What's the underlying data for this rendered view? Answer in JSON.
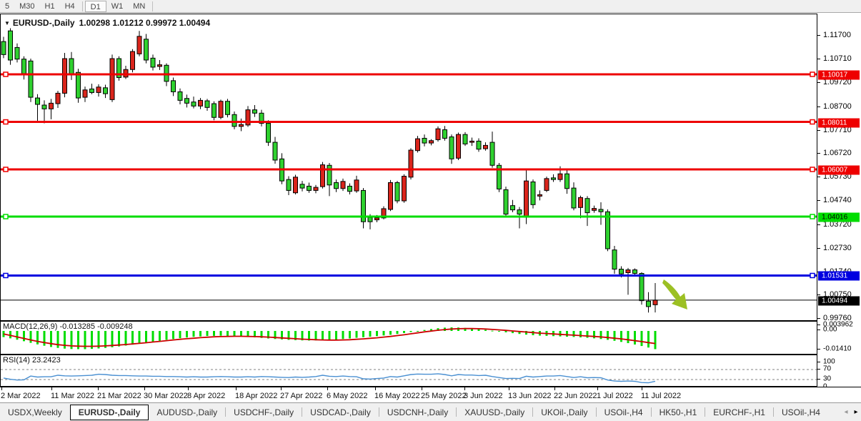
{
  "toolbar": {
    "timeframes": [
      "5",
      "M30",
      "H1",
      "H4",
      "D1",
      "W1",
      "MN"
    ],
    "active": "D1",
    "separators_after": [
      "H4",
      "MN"
    ]
  },
  "chart_header": {
    "symbol_label": "EURUSD-,Daily",
    "ohlc": "1.00298 1.01212 0.99972 1.00494",
    "dropdown_icon": "▼"
  },
  "chart_data": {
    "type": "candlestick",
    "symbol": "EURUSD",
    "timeframe": "Daily",
    "ohlc_current": {
      "open": 1.00298,
      "high": 1.01212,
      "low": 0.99972,
      "close": 1.00494
    },
    "color_scheme": {
      "up_candle": "#da251c",
      "down_candle": "#2fd12f",
      "note": "red = bullish, green = bearish"
    },
    "price_axis_ticks": [
      "1.11700",
      "1.10710",
      "1.09720",
      "1.08700",
      "1.07710",
      "1.06720",
      "1.05730",
      "1.04740",
      "1.03720",
      "1.02730",
      "1.01740",
      "1.00750",
      "0.99760"
    ],
    "hlines": [
      {
        "price": 1.10017,
        "label": "1.10017",
        "color": "#ee0000",
        "text": "#fff",
        "thick": true,
        "handles": true
      },
      {
        "price": 1.08011,
        "label": "1.08011",
        "color": "#ee0000",
        "text": "#fff",
        "thick": true,
        "handles": true
      },
      {
        "price": 1.06007,
        "label": "1.06007",
        "color": "#ee0000",
        "text": "#fff",
        "thick": true,
        "handles": true
      },
      {
        "price": 1.04016,
        "label": "1.04016",
        "color": "#00dd00",
        "text": "#000",
        "thick": true,
        "handles": true
      },
      {
        "price": 1.01531,
        "label": "1.01531",
        "color": "#0000e0",
        "text": "#fff",
        "thick": true,
        "handles": true
      },
      {
        "price": 1.00494,
        "label": "1.00494",
        "color": "#000000",
        "text": "#fff",
        "thick": false,
        "handles": false
      }
    ],
    "candles": [
      [
        1.114,
        1.116,
        1.107,
        1.1085
      ],
      [
        1.1185,
        1.1196,
        1.1042,
        1.1062
      ],
      [
        1.1115,
        1.1132,
        1.1052,
        1.1066
      ],
      [
        1.1066,
        1.1078,
        1.098,
        1.1005
      ],
      [
        1.1058,
        1.1068,
        1.0885,
        1.0905
      ],
      [
        1.0902,
        1.0918,
        1.08,
        1.0875
      ],
      [
        1.0872,
        1.0892,
        1.0795,
        1.0856
      ],
      [
        1.0856,
        1.0898,
        1.0812,
        1.088
      ],
      [
        1.0878,
        1.0932,
        1.086,
        1.0922
      ],
      [
        1.0922,
        1.1092,
        1.0905,
        1.1068
      ],
      [
        1.1068,
        1.1096,
        1.0978,
        1.1002
      ],
      [
        1.101,
        1.1025,
        1.0882,
        1.0902
      ],
      [
        1.0905,
        1.095,
        1.0885,
        1.0936
      ],
      [
        1.094,
        1.0962,
        1.0918,
        1.0925
      ],
      [
        1.0925,
        1.096,
        1.0908,
        1.0948
      ],
      [
        1.0945,
        1.0958,
        1.0902,
        1.092
      ],
      [
        1.0895,
        1.1085,
        1.0885,
        1.1068
      ],
      [
        1.1068,
        1.1078,
        1.0975,
        1.0988
      ],
      [
        1.099,
        1.1038,
        1.0982,
        1.1022
      ],
      [
        1.1022,
        1.1108,
        1.101,
        1.1098
      ],
      [
        1.1088,
        1.1185,
        1.1078,
        1.1162
      ],
      [
        1.115,
        1.1172,
        1.1048,
        1.1062
      ],
      [
        1.107,
        1.1085,
        1.1018,
        1.1032
      ],
      [
        1.1035,
        1.1062,
        1.102,
        1.1042
      ],
      [
        1.104,
        1.1048,
        1.0952,
        1.0972
      ],
      [
        1.0975,
        1.0988,
        1.091,
        1.0928
      ],
      [
        1.0928,
        1.0942,
        1.0875,
        1.0892
      ],
      [
        1.09,
        1.0916,
        1.0862,
        1.088
      ],
      [
        1.0885,
        1.0908,
        1.0858,
        1.0868
      ],
      [
        1.0868,
        1.0902,
        1.0855,
        1.0892
      ],
      [
        1.089,
        1.0898,
        1.0848,
        1.0862
      ],
      [
        1.0878,
        1.0888,
        1.0808,
        1.082
      ],
      [
        1.082,
        1.0895,
        1.0812,
        1.0888
      ],
      [
        1.0888,
        1.0898,
        1.082,
        1.0832
      ],
      [
        1.0832,
        1.0845,
        1.077,
        1.0782
      ],
      [
        1.0782,
        1.0815,
        1.0762,
        1.079
      ],
      [
        1.0788,
        1.0868,
        1.078,
        1.0852
      ],
      [
        1.0852,
        1.0872,
        1.0822,
        1.0838
      ],
      [
        1.0838,
        1.0852,
        1.0782,
        1.0795
      ],
      [
        1.0795,
        1.0808,
        1.07,
        1.0715
      ],
      [
        1.0715,
        1.0738,
        1.0625,
        1.064
      ],
      [
        1.0645,
        1.0669,
        1.0538,
        1.0552
      ],
      [
        1.0558,
        1.0572,
        1.0492,
        1.0512
      ],
      [
        1.0502,
        1.0578,
        1.0495,
        1.0568
      ],
      [
        1.0538,
        1.0552,
        1.0508,
        1.0522
      ],
      [
        1.053,
        1.0545,
        1.0502,
        1.0512
      ],
      [
        1.0512,
        1.0535,
        1.05,
        1.0525
      ],
      [
        1.0528,
        1.0632,
        1.052,
        1.062
      ],
      [
        1.0618,
        1.0628,
        1.0488,
        1.0535
      ],
      [
        1.0545,
        1.0558,
        1.0505,
        1.052
      ],
      [
        1.052,
        1.0562,
        1.051,
        1.055
      ],
      [
        1.053,
        1.0542,
        1.0495,
        1.0508
      ],
      [
        1.051,
        1.0574,
        1.0502,
        1.0556
      ],
      [
        1.0512,
        1.0522,
        1.0352,
        1.038
      ],
      [
        1.0398,
        1.0412,
        1.0348,
        1.038
      ],
      [
        1.0388,
        1.0408,
        1.0378,
        1.0396
      ],
      [
        1.0396,
        1.0445,
        1.039,
        1.0435
      ],
      [
        1.0432,
        1.0556,
        1.0425,
        1.0545
      ],
      [
        1.0545,
        1.0552,
        1.0458,
        1.0468
      ],
      [
        1.0468,
        1.058,
        1.046,
        1.0572
      ],
      [
        1.0568,
        1.069,
        1.0558,
        1.0682
      ],
      [
        1.068,
        1.0742,
        1.0672,
        1.073
      ],
      [
        1.0732,
        1.0748,
        1.0698,
        1.0712
      ],
      [
        1.0712,
        1.0728,
        1.0702,
        1.0722
      ],
      [
        1.0726,
        1.0782,
        1.0718,
        1.0772
      ],
      [
        1.0768,
        1.0784,
        1.0722,
        1.0732
      ],
      [
        1.0738,
        1.0748,
        1.0624,
        1.0645
      ],
      [
        1.0648,
        1.0756,
        1.064,
        1.0748
      ],
      [
        1.0748,
        1.0758,
        1.07,
        1.0708
      ],
      [
        1.0715,
        1.0735,
        1.07,
        1.072
      ],
      [
        1.072,
        1.0732,
        1.0675,
        1.0686
      ],
      [
        1.0688,
        1.0715,
        1.068,
        1.0702
      ],
      [
        1.0715,
        1.076,
        1.0608,
        1.0618
      ],
      [
        1.0618,
        1.0628,
        1.0505,
        1.0518
      ],
      [
        1.0515,
        1.0528,
        1.0398,
        1.0412
      ],
      [
        1.0448,
        1.0472,
        1.042,
        1.043
      ],
      [
        1.043,
        1.0442,
        1.0352,
        1.0412
      ],
      [
        1.0402,
        1.0601,
        1.037,
        1.0552
      ],
      [
        1.0548,
        1.0558,
        1.0436,
        1.0452
      ],
      [
        1.0488,
        1.0512,
        1.047,
        1.0494
      ],
      [
        1.0512,
        1.057,
        1.0505,
        1.0562
      ],
      [
        1.0565,
        1.058,
        1.0548,
        1.0558
      ],
      [
        1.0558,
        1.0614,
        1.0548,
        1.0582
      ],
      [
        1.0582,
        1.0605,
        1.0498,
        1.052
      ],
      [
        1.0522,
        1.0546,
        1.0428,
        1.0438
      ],
      [
        1.044,
        1.049,
        1.0395,
        1.0482
      ],
      [
        1.0478,
        1.0488,
        1.0362,
        1.0418
      ],
      [
        1.0428,
        1.0448,
        1.0418,
        1.0436
      ],
      [
        1.0432,
        1.0462,
        1.0367,
        1.0422
      ],
      [
        1.0422,
        1.0432,
        1.0256,
        1.0266
      ],
      [
        1.0261,
        1.0278,
        1.016,
        1.018
      ],
      [
        1.018,
        1.0192,
        1.0145,
        1.016
      ],
      [
        1.0165,
        1.0185,
        1.0072,
        1.0177
      ],
      [
        1.0177,
        1.0183,
        1.0155,
        1.0162
      ],
      [
        1.0162,
        1.0167,
        1.003,
        1.0047
      ],
      [
        1.0045,
        1.0083,
        0.9997,
        1.0022
      ],
      [
        1.00298,
        1.01212,
        0.99972,
        1.00494
      ]
    ],
    "x_axis": {
      "labels": [
        "2 Mar 2022",
        "11 Mar 2022",
        "21 Mar 2022",
        "30 Mar 2022",
        "8 Apr 2022",
        "18 Apr 2022",
        "27 Apr 2022",
        "6 May 2022",
        "16 May 2022",
        "25 May 2022",
        "3 Jun 2022",
        "13 Jun 2022",
        "22 Jun 2022",
        "1 Jul 2022",
        "11 Jul 2022"
      ],
      "positions": [
        2,
        72,
        137,
        202,
        263,
        330,
        393,
        458,
        525,
        590,
        650,
        712,
        776,
        836,
        898
      ]
    },
    "macd": {
      "label": "MACD(12,26,9) -0.013285 -0.009248",
      "macd_value": -0.013285,
      "signal_value": -0.009248,
      "scale_labels": [
        "0.003962",
        "0.00",
        "-0.01410"
      ],
      "histogram_color": "#00dd00",
      "signal_color": "#cc0000",
      "histogram": [
        -0.0045,
        -0.0054,
        -0.0064,
        -0.0075,
        -0.0087,
        -0.0098,
        -0.0108,
        -0.0117,
        -0.0124,
        -0.0129,
        -0.0132,
        -0.0133,
        -0.0133,
        -0.0131,
        -0.0128,
        -0.0124,
        -0.0119,
        -0.0113,
        -0.0107,
        -0.01,
        -0.0093,
        -0.0086,
        -0.0079,
        -0.0072,
        -0.0065,
        -0.0059,
        -0.0053,
        -0.0048,
        -0.0043,
        -0.004,
        -0.0037,
        -0.0036,
        -0.0035,
        -0.0036,
        -0.0038,
        -0.004,
        -0.0043,
        -0.0047,
        -0.0051,
        -0.0055,
        -0.0059,
        -0.0062,
        -0.0065,
        -0.0067,
        -0.0069,
        -0.007,
        -0.0069,
        -0.0068,
        -0.0066,
        -0.0063,
        -0.0059,
        -0.0055,
        -0.005,
        -0.0046,
        -0.0042,
        -0.0038,
        -0.0033,
        -0.0028,
        -0.0022,
        -0.0015,
        -0.0008,
        -0.0001,
        0.0007,
        0.0014,
        0.002,
        0.0024,
        0.0026,
        0.0025,
        0.0022,
        0.0018,
        0.0013,
        0.0008,
        0.0002,
        -0.0004,
        -0.001,
        -0.0016,
        -0.0022,
        -0.0027,
        -0.0031,
        -0.0034,
        -0.0036,
        -0.0038,
        -0.004,
        -0.0042,
        -0.0044,
        -0.0047,
        -0.005,
        -0.0054,
        -0.0059,
        -0.0065,
        -0.0072,
        -0.008,
        -0.0089,
        -0.0099,
        -0.011,
        -0.0121,
        -0.0133
      ],
      "signal": [
        -0.0022,
        -0.0033,
        -0.0044,
        -0.0055,
        -0.0066,
        -0.0076,
        -0.0085,
        -0.0093,
        -0.01,
        -0.0105,
        -0.0109,
        -0.0111,
        -0.0112,
        -0.0112,
        -0.0111,
        -0.0109,
        -0.0106,
        -0.0103,
        -0.0099,
        -0.0095,
        -0.0091,
        -0.0086,
        -0.0081,
        -0.0076,
        -0.0071,
        -0.0066,
        -0.0061,
        -0.0057,
        -0.0053,
        -0.0049,
        -0.0046,
        -0.0043,
        -0.0041,
        -0.004,
        -0.0039,
        -0.0039,
        -0.004,
        -0.0041,
        -0.0043,
        -0.0045,
        -0.0048,
        -0.0051,
        -0.0054,
        -0.0057,
        -0.006,
        -0.0062,
        -0.0064,
        -0.0066,
        -0.0067,
        -0.0067,
        -0.0066,
        -0.0064,
        -0.0061,
        -0.0058,
        -0.0054,
        -0.005,
        -0.0045,
        -0.004,
        -0.0034,
        -0.0028,
        -0.0021,
        -0.0014,
        -0.0007,
        -0.0001,
        0.0005,
        0.001,
        0.0014,
        0.0016,
        0.0017,
        0.0017,
        0.0016,
        0.0014,
        0.0011,
        0.0008,
        0.0004,
        0.0,
        -0.0004,
        -0.0008,
        -0.0012,
        -0.0016,
        -0.0019,
        -0.0022,
        -0.0025,
        -0.0028,
        -0.0031,
        -0.0034,
        -0.0037,
        -0.004,
        -0.0044,
        -0.0048,
        -0.0053,
        -0.0058,
        -0.0064,
        -0.0071,
        -0.0078,
        -0.0085,
        -0.0092
      ]
    },
    "rsi": {
      "label": "RSI(14) 23.2423",
      "value": 23.2423,
      "levels": [
        "100",
        "70",
        "30",
        "0"
      ],
      "line_color": "#4a90d2",
      "series": [
        36,
        31,
        28,
        29,
        44,
        40,
        41,
        41,
        47,
        45,
        44,
        45,
        46,
        47,
        51,
        50,
        47,
        46,
        46,
        45,
        44,
        44,
        43,
        43,
        42,
        42,
        41,
        40,
        41,
        40,
        40,
        41,
        42,
        41,
        40,
        40,
        41,
        40,
        42,
        41,
        40,
        39,
        38,
        40,
        39,
        40,
        42,
        47,
        43,
        42,
        44,
        42,
        41,
        33,
        32,
        34,
        36,
        42,
        40,
        45,
        50,
        52,
        51,
        51,
        53,
        50,
        45,
        50,
        48,
        48,
        46,
        47,
        42,
        38,
        34,
        35,
        34,
        43,
        40,
        42,
        44,
        44,
        46,
        42,
        38,
        41,
        37,
        38,
        37,
        28,
        24,
        23,
        24,
        23,
        18,
        17,
        23.2
      ]
    },
    "arrow_annotation": {
      "color": "#9cc024",
      "direction": "down-right"
    }
  },
  "tabs": {
    "items": [
      "USDX,Weekly",
      "EURUSD-,Daily",
      "AUDUSD-,Daily",
      "USDCHF-,Daily",
      "USDCAD-,Daily",
      "USDCNH-,Daily",
      "XAUUSD-,Daily",
      "UKOil-,Daily",
      "USOil-,H4",
      "HK50-,H1",
      "EURCHF-,H1",
      "USOil-,H4"
    ],
    "active_index": 1,
    "scroll_left": "◂",
    "scroll_right": "▸"
  }
}
